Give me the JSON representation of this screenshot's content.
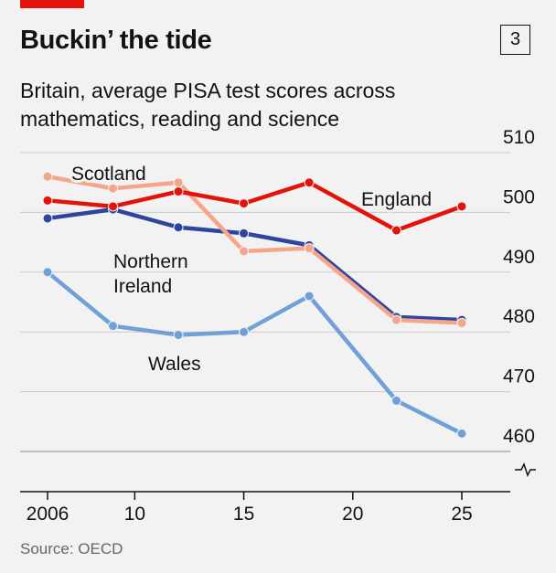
{
  "header": {
    "chart_number": "3",
    "title": "Buckin’ the tide",
    "subtitle": "Britain, average PISA test scores across mathematics, reading and science"
  },
  "source": "Source: OECD",
  "colors": {
    "accent_bar": "#e3120b",
    "England": "#e3120b",
    "Scotland": "#f4a58a",
    "Northern Ireland": "#2e45a0",
    "Wales": "#6fa0d8"
  },
  "chart_data": {
    "type": "line",
    "title": "Buckin’ the tide",
    "subtitle": "Britain, average PISA test scores across mathematics, reading and science",
    "xlabel": "",
    "ylabel": "",
    "x_ticks": [
      {
        "value": 2006,
        "label": "2006"
      },
      {
        "value": 2010,
        "label": "10"
      },
      {
        "value": 2015,
        "label": "15"
      },
      {
        "value": 2020,
        "label": "20"
      },
      {
        "value": 2025,
        "label": "25"
      }
    ],
    "y_ticks": [
      460,
      470,
      480,
      490,
      500,
      510
    ],
    "y_axis_side": "right",
    "y_axis_break": true,
    "xlim": [
      2005,
      2026
    ],
    "ylim": [
      460,
      510
    ],
    "grid": true,
    "legend": "direct labels",
    "series": [
      {
        "name": "England",
        "label_lines": [
          "England"
        ],
        "x": [
          2006,
          2009,
          2012,
          2015,
          2018,
          2022,
          2025
        ],
        "y": [
          502,
          501,
          503.5,
          501.5,
          505,
          497,
          501
        ]
      },
      {
        "name": "Scotland",
        "label_lines": [
          "Scotland"
        ],
        "x": [
          2006,
          2009,
          2012,
          2015,
          2018,
          2022,
          2025
        ],
        "y": [
          506,
          504,
          505,
          493.5,
          494,
          482,
          481.5
        ]
      },
      {
        "name": "Northern Ireland",
        "label_lines": [
          "Northern",
          "Ireland"
        ],
        "x": [
          2006,
          2009,
          2012,
          2015,
          2018,
          2022,
          2025
        ],
        "y": [
          499,
          500.5,
          497.5,
          496.5,
          494.5,
          482.5,
          482
        ]
      },
      {
        "name": "Wales",
        "label_lines": [
          "Wales"
        ],
        "x": [
          2006,
          2009,
          2012,
          2015,
          2018,
          2022,
          2025
        ],
        "y": [
          490,
          481,
          479.5,
          480,
          486,
          468.5,
          463
        ]
      }
    ]
  }
}
